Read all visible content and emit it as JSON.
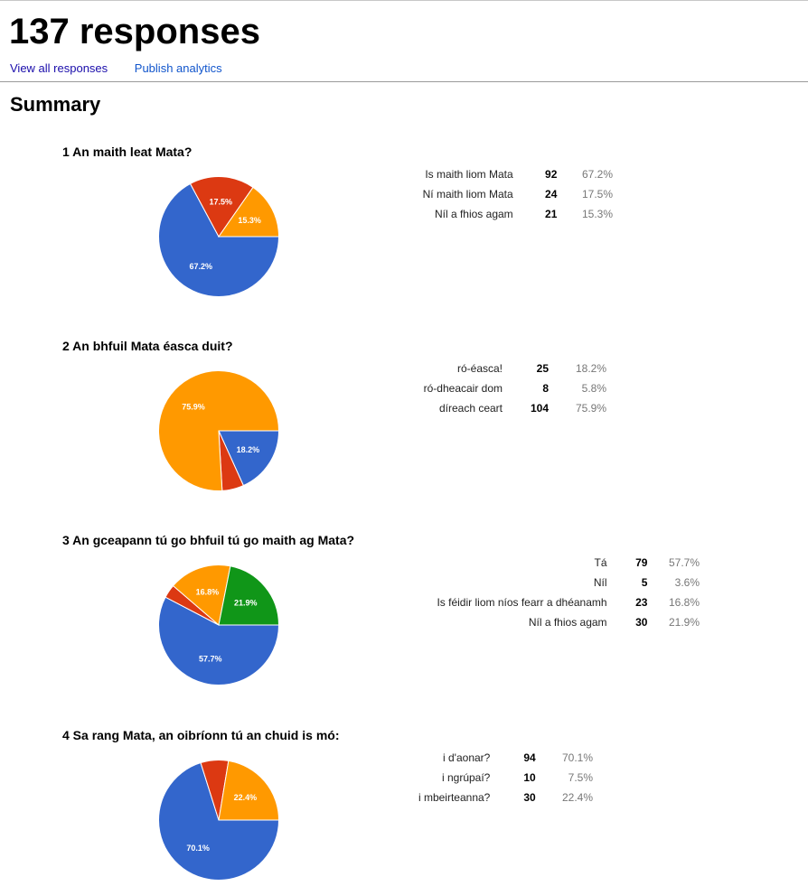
{
  "header": {
    "title": "137 responses",
    "view_all": "View all responses",
    "publish": "Publish analytics",
    "summary": "Summary"
  },
  "colors": {
    "blue": "#3366cc",
    "red": "#dc3912",
    "orange": "#ff9900",
    "green": "#109618"
  },
  "chart_data": [
    {
      "type": "pie",
      "title": "1 An maith leat Mata?",
      "categories": [
        "Is maith liom Mata",
        "Ní maith liom Mata",
        "Níl a fhios agam"
      ],
      "values": [
        92,
        24,
        21
      ],
      "percents": [
        "67.2%",
        "17.5%",
        "15.3%"
      ],
      "slice_labels": [
        "67.2%",
        "17.5%",
        "15.3%"
      ],
      "colors": [
        "#3366cc",
        "#dc3912",
        "#ff9900"
      ]
    },
    {
      "type": "pie",
      "title": "2 An bhfuil Mata éasca duit?",
      "categories": [
        "ró-éasca!",
        "ró-dheacair dom",
        "díreach ceart"
      ],
      "values": [
        25,
        8,
        104
      ],
      "percents": [
        "18.2%",
        "5.8%",
        "75.9%"
      ],
      "slice_labels": [
        "18.2%",
        "",
        "75.9%"
      ],
      "colors": [
        "#3366cc",
        "#dc3912",
        "#ff9900"
      ]
    },
    {
      "type": "pie",
      "title": "3 An gceapann tú go bhfuil tú go maith ag Mata?",
      "categories": [
        "Tá",
        "Níl",
        "Is féidir liom níos fearr a dhéanamh",
        "Níl a fhios agam"
      ],
      "values": [
        79,
        5,
        23,
        30
      ],
      "percents": [
        "57.7%",
        "3.6%",
        "16.8%",
        "21.9%"
      ],
      "slice_labels": [
        "57.7%",
        "",
        "16.8%",
        "21.9%"
      ],
      "colors": [
        "#3366cc",
        "#dc3912",
        "#ff9900",
        "#109618"
      ]
    },
    {
      "type": "pie",
      "title": "4 Sa rang Mata, an oibríonn tú an chuid is mó:",
      "categories": [
        "i d'aonar?",
        "i ngrúpaí?",
        "i mbeirteanna?"
      ],
      "values": [
        94,
        10,
        30
      ],
      "percents": [
        "70.1%",
        "7.5%",
        "22.4%"
      ],
      "slice_labels": [
        "70.1%",
        "",
        "22.4%"
      ],
      "colors": [
        "#3366cc",
        "#dc3912",
        "#ff9900"
      ]
    }
  ]
}
